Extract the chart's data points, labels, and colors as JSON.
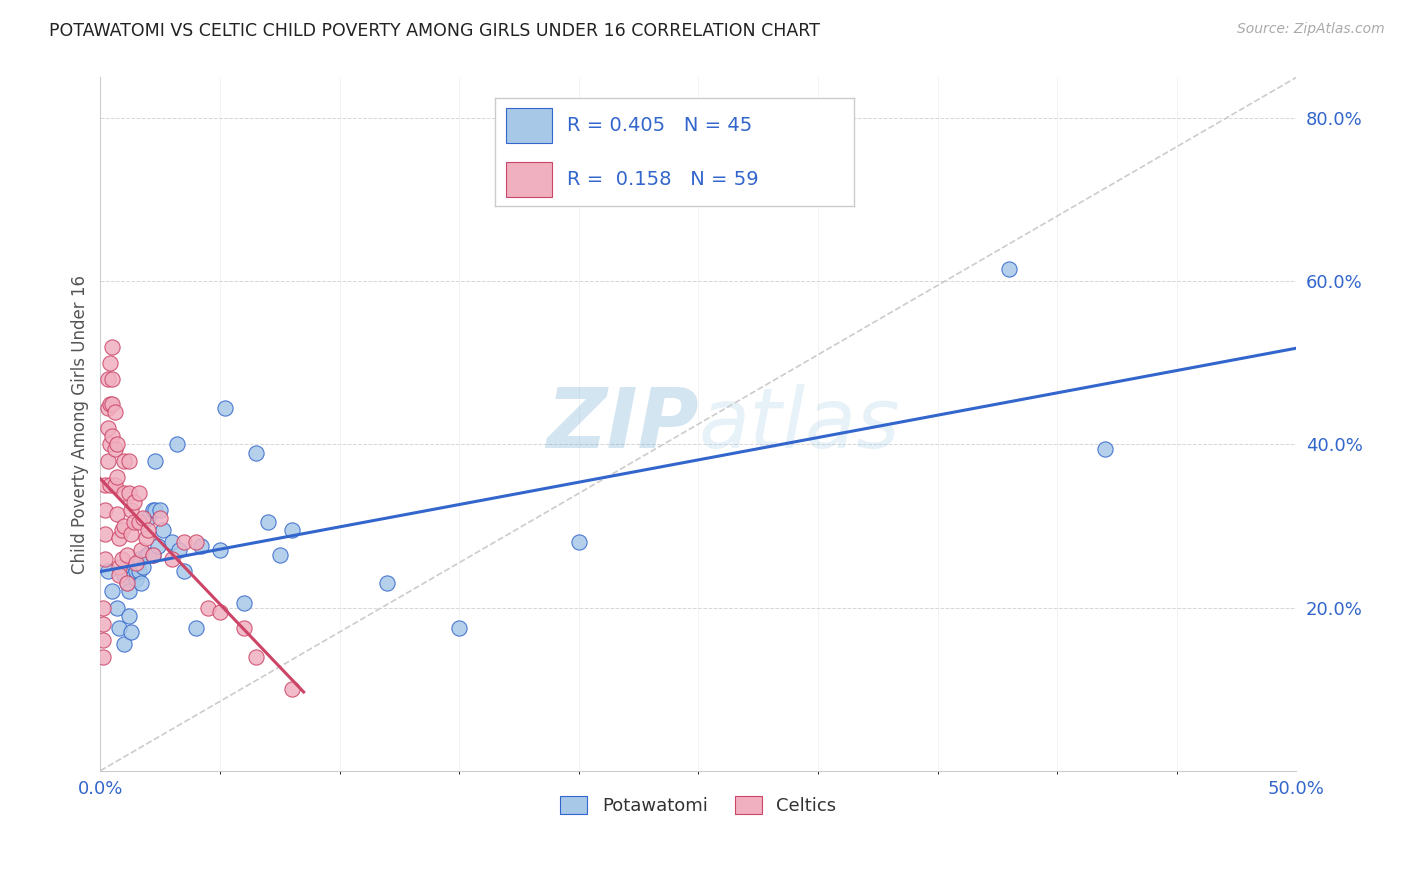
{
  "title": "POTAWATOMI VS CELTIC CHILD POVERTY AMONG GIRLS UNDER 16 CORRELATION CHART",
  "source": "Source: ZipAtlas.com",
  "ylabel": "Child Poverty Among Girls Under 16",
  "xlim": [
    0.0,
    0.5
  ],
  "ylim": [
    0.0,
    0.85
  ],
  "xticks": [
    0.0,
    0.5
  ],
  "yticks": [
    0.2,
    0.4,
    0.6,
    0.8
  ],
  "background_color": "#ffffff",
  "watermark": "ZIPatlas",
  "blue_color": "#a8c8e8",
  "pink_color": "#f0b0c0",
  "line_blue": "#3366cc",
  "line_pink": "#cc4466",
  "diag_color": "#cccccc",
  "potawatomi_x": [
    0.003,
    0.005,
    0.007,
    0.008,
    0.01,
    0.01,
    0.011,
    0.012,
    0.012,
    0.013,
    0.014,
    0.015,
    0.015,
    0.016,
    0.016,
    0.017,
    0.018,
    0.019,
    0.02,
    0.02,
    0.022,
    0.022,
    0.023,
    0.023,
    0.024,
    0.025,
    0.026,
    0.03,
    0.032,
    0.033,
    0.035,
    0.04,
    0.042,
    0.05,
    0.052,
    0.06,
    0.065,
    0.07,
    0.075,
    0.08,
    0.12,
    0.15,
    0.2,
    0.38,
    0.42
  ],
  "potawatomi_y": [
    0.245,
    0.22,
    0.2,
    0.175,
    0.155,
    0.24,
    0.23,
    0.22,
    0.19,
    0.17,
    0.24,
    0.235,
    0.245,
    0.26,
    0.245,
    0.23,
    0.25,
    0.265,
    0.31,
    0.265,
    0.32,
    0.265,
    0.38,
    0.32,
    0.275,
    0.32,
    0.295,
    0.28,
    0.4,
    0.27,
    0.245,
    0.175,
    0.275,
    0.27,
    0.445,
    0.205,
    0.39,
    0.305,
    0.265,
    0.295,
    0.23,
    0.175,
    0.28,
    0.615,
    0.395
  ],
  "celtics_x": [
    0.001,
    0.001,
    0.001,
    0.001,
    0.002,
    0.002,
    0.002,
    0.002,
    0.003,
    0.003,
    0.003,
    0.003,
    0.004,
    0.004,
    0.004,
    0.004,
    0.005,
    0.005,
    0.005,
    0.005,
    0.006,
    0.006,
    0.006,
    0.007,
    0.007,
    0.007,
    0.008,
    0.008,
    0.008,
    0.009,
    0.009,
    0.01,
    0.01,
    0.01,
    0.011,
    0.011,
    0.012,
    0.012,
    0.013,
    0.013,
    0.014,
    0.014,
    0.015,
    0.016,
    0.016,
    0.017,
    0.018,
    0.019,
    0.02,
    0.022,
    0.025,
    0.03,
    0.035,
    0.04,
    0.045,
    0.05,
    0.06,
    0.065,
    0.08
  ],
  "celtics_y": [
    0.2,
    0.18,
    0.16,
    0.14,
    0.35,
    0.32,
    0.29,
    0.26,
    0.48,
    0.445,
    0.42,
    0.38,
    0.5,
    0.45,
    0.4,
    0.35,
    0.52,
    0.48,
    0.45,
    0.41,
    0.44,
    0.395,
    0.35,
    0.4,
    0.36,
    0.315,
    0.285,
    0.25,
    0.24,
    0.295,
    0.26,
    0.38,
    0.34,
    0.3,
    0.265,
    0.23,
    0.38,
    0.34,
    0.32,
    0.29,
    0.33,
    0.305,
    0.255,
    0.34,
    0.305,
    0.27,
    0.31,
    0.285,
    0.295,
    0.265,
    0.31,
    0.26,
    0.28,
    0.28,
    0.2,
    0.195,
    0.175,
    0.14,
    0.1
  ]
}
